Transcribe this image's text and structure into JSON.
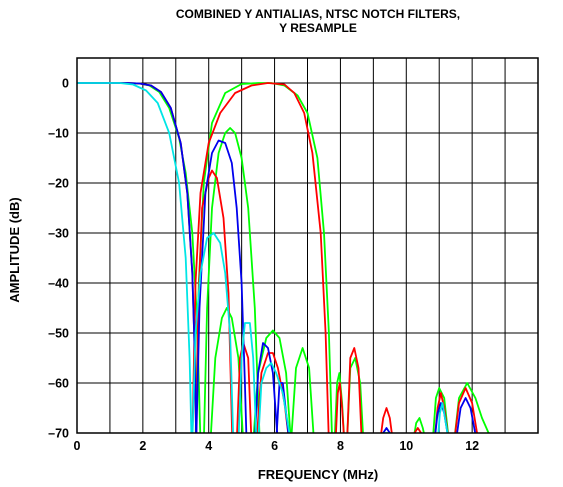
{
  "chart_data": {
    "type": "line",
    "title_lines": [
      "COMBINED Y ANTIALIAS, NTSC NOTCH FILTERS,",
      "Y RESAMPLE"
    ],
    "xlabel": "FREQUENCY (MHz)",
    "ylabel": "AMPLITUDE (dB)",
    "xlim": [
      0,
      14
    ],
    "ylim": [
      -70,
      5
    ],
    "x_ticks": [
      0,
      2,
      4,
      6,
      8,
      10,
      12
    ],
    "y_ticks": [
      0,
      -10,
      -20,
      -30,
      -40,
      -50,
      -60,
      -70
    ],
    "x_grid": [
      0,
      1,
      2,
      3,
      4,
      5,
      6,
      7,
      8,
      9,
      10,
      11,
      12,
      13,
      14
    ],
    "y_grid": [
      0,
      -10,
      -20,
      -30,
      -40,
      -50,
      -60,
      -70
    ],
    "grid": true,
    "series": [
      {
        "color": "#00ff00",
        "segments": [
          [
            [
              0,
              0
            ],
            [
              1.5,
              0
            ],
            [
              1.9,
              -0.1
            ],
            [
              2.2,
              -0.5
            ],
            [
              2.5,
              -1.8
            ],
            [
              2.8,
              -5
            ],
            [
              3.1,
              -11
            ],
            [
              3.3,
              -18
            ],
            [
              3.5,
              -30
            ],
            [
              3.65,
              -48
            ],
            [
              3.75,
              -72
            ]
          ],
          [
            [
              3.85,
              -72
            ],
            [
              3.95,
              -45
            ],
            [
              4.1,
              -25
            ],
            [
              4.3,
              -14
            ],
            [
              4.5,
              -10
            ],
            [
              4.65,
              -9
            ],
            [
              4.8,
              -10
            ],
            [
              5.0,
              -15
            ],
            [
              5.2,
              -25
            ],
            [
              5.4,
              -45
            ],
            [
              5.55,
              -72
            ]
          ],
          [
            [
              3.6,
              -72
            ],
            [
              3.7,
              -40
            ],
            [
              3.85,
              -20
            ],
            [
              4.1,
              -8
            ],
            [
              4.5,
              -2
            ],
            [
              5.0,
              -0.2
            ],
            [
              5.5,
              0
            ],
            [
              5.9,
              0
            ],
            [
              6.3,
              -0.5
            ],
            [
              6.7,
              -2.5
            ],
            [
              7.0,
              -6
            ],
            [
              7.3,
              -15
            ],
            [
              7.5,
              -30
            ],
            [
              7.65,
              -50
            ],
            [
              7.75,
              -72
            ]
          ],
          [
            [
              4.05,
              -72
            ],
            [
              4.2,
              -55
            ],
            [
              4.4,
              -47
            ],
            [
              4.55,
              -45
            ],
            [
              4.7,
              -47
            ],
            [
              4.9,
              -55
            ],
            [
              5.05,
              -72
            ]
          ],
          [
            [
              5.35,
              -72
            ],
            [
              5.5,
              -58
            ],
            [
              5.75,
              -51
            ],
            [
              5.95,
              -49.5
            ],
            [
              6.15,
              -51
            ],
            [
              6.35,
              -58
            ],
            [
              6.5,
              -72
            ]
          ],
          [
            [
              6.5,
              -72
            ],
            [
              6.65,
              -57
            ],
            [
              6.85,
              -53
            ],
            [
              7.05,
              -57
            ],
            [
              7.2,
              -72
            ]
          ],
          [
            [
              7.82,
              -72
            ],
            [
              7.9,
              -60
            ],
            [
              7.97,
              -58
            ],
            [
              8.05,
              -64
            ],
            [
              8.12,
              -72
            ]
          ],
          [
            [
              8.2,
              -72
            ],
            [
              8.3,
              -57
            ],
            [
              8.45,
              -55
            ],
            [
              8.6,
              -60
            ],
            [
              8.7,
              -72
            ]
          ],
          [
            [
              10.2,
              -72
            ],
            [
              10.3,
              -68
            ],
            [
              10.4,
              -67
            ],
            [
              10.5,
              -69
            ],
            [
              10.6,
              -72
            ]
          ],
          [
            [
              10.8,
              -72
            ],
            [
              10.9,
              -63
            ],
            [
              11.0,
              -61
            ],
            [
              11.15,
              -63
            ],
            [
              11.3,
              -72
            ]
          ],
          [
            [
              11.45,
              -72
            ],
            [
              11.6,
              -63
            ],
            [
              11.85,
              -60
            ],
            [
              12.1,
              -63
            ],
            [
              12.3,
              -67
            ],
            [
              12.5,
              -70
            ],
            [
              12.65,
              -72
            ]
          ]
        ]
      },
      {
        "color": "#ff0000",
        "segments": [
          [
            [
              0,
              0
            ],
            [
              1.5,
              0
            ],
            [
              1.9,
              -0.1
            ],
            [
              2.25,
              -0.5
            ],
            [
              2.55,
              -1.8
            ],
            [
              2.85,
              -5
            ],
            [
              3.15,
              -12
            ],
            [
              3.35,
              -22
            ],
            [
              3.5,
              -38
            ],
            [
              3.58,
              -55
            ],
            [
              3.62,
              -72
            ]
          ],
          [
            [
              3.62,
              -72
            ],
            [
              3.68,
              -45
            ],
            [
              3.8,
              -25
            ],
            [
              4.0,
              -19
            ],
            [
              4.1,
              -17.5
            ],
            [
              4.25,
              -19
            ],
            [
              4.45,
              -27
            ],
            [
              4.6,
              -42
            ],
            [
              4.72,
              -72
            ]
          ],
          [
            [
              3.5,
              -72
            ],
            [
              3.6,
              -40
            ],
            [
              3.75,
              -22
            ],
            [
              4.0,
              -12
            ],
            [
              4.35,
              -6
            ],
            [
              4.8,
              -2
            ],
            [
              5.3,
              -0.5
            ],
            [
              5.8,
              0
            ],
            [
              6.3,
              -0.3
            ],
            [
              6.6,
              -2
            ],
            [
              6.9,
              -6
            ],
            [
              7.15,
              -14
            ],
            [
              7.4,
              -30
            ],
            [
              7.55,
              -50
            ],
            [
              7.65,
              -72
            ]
          ],
          [
            [
              4.85,
              -72
            ],
            [
              4.95,
              -55
            ],
            [
              5.05,
              -52
            ],
            [
              5.2,
              -55
            ],
            [
              5.3,
              -72
            ]
          ],
          [
            [
              5.45,
              -72
            ],
            [
              5.6,
              -58
            ],
            [
              5.8,
              -54
            ],
            [
              5.95,
              -54
            ],
            [
              6.1,
              -57
            ],
            [
              6.3,
              -64
            ],
            [
              6.45,
              -72
            ]
          ],
          [
            [
              7.85,
              -72
            ],
            [
              7.92,
              -62
            ],
            [
              7.98,
              -60
            ],
            [
              8.05,
              -65
            ],
            [
              8.12,
              -72
            ]
          ],
          [
            [
              8.2,
              -72
            ],
            [
              8.3,
              -55
            ],
            [
              8.42,
              -53
            ],
            [
              8.55,
              -57
            ],
            [
              8.65,
              -72
            ]
          ],
          [
            [
              9.2,
              -72
            ],
            [
              9.3,
              -67
            ],
            [
              9.4,
              -65
            ],
            [
              9.5,
              -67
            ],
            [
              9.6,
              -72
            ]
          ],
          [
            [
              10.15,
              -72
            ],
            [
              10.25,
              -70
            ],
            [
              10.35,
              -69
            ],
            [
              10.45,
              -70
            ],
            [
              10.55,
              -72
            ]
          ],
          [
            [
              10.85,
              -72
            ],
            [
              10.95,
              -65
            ],
            [
              11.05,
              -62
            ],
            [
              11.15,
              -65
            ],
            [
              11.3,
              -72
            ]
          ],
          [
            [
              11.45,
              -72
            ],
            [
              11.6,
              -64
            ],
            [
              11.8,
              -61
            ],
            [
              12.0,
              -64
            ],
            [
              12.2,
              -72
            ]
          ]
        ]
      },
      {
        "color": "#0000ee",
        "segments": [
          [
            [
              0,
              0
            ],
            [
              1.5,
              0
            ],
            [
              1.9,
              -0.1
            ],
            [
              2.25,
              -0.5
            ],
            [
              2.55,
              -1.8
            ],
            [
              2.85,
              -5
            ],
            [
              3.15,
              -12
            ],
            [
              3.35,
              -22
            ],
            [
              3.5,
              -38
            ],
            [
              3.58,
              -55
            ],
            [
              3.62,
              -72
            ]
          ],
          [
            [
              3.62,
              -72
            ],
            [
              3.72,
              -45
            ],
            [
              3.9,
              -22
            ],
            [
              4.1,
              -14
            ],
            [
              4.3,
              -11.5
            ],
            [
              4.5,
              -12
            ],
            [
              4.7,
              -16
            ],
            [
              4.85,
              -25
            ],
            [
              5.0,
              -40
            ],
            [
              5.1,
              -60
            ],
            [
              5.15,
              -72
            ]
          ],
          [
            [
              5.4,
              -72
            ],
            [
              5.5,
              -58
            ],
            [
              5.65,
              -52
            ],
            [
              5.8,
              -53
            ],
            [
              5.95,
              -58
            ],
            [
              6.1,
              -72
            ]
          ],
          [
            [
              6.05,
              -72
            ],
            [
              6.15,
              -60
            ],
            [
              6.25,
              -60
            ],
            [
              6.35,
              -66
            ],
            [
              6.45,
              -72
            ]
          ],
          [
            [
              9.2,
              -72
            ],
            [
              9.3,
              -70
            ],
            [
              9.4,
              -69
            ],
            [
              9.5,
              -70
            ],
            [
              9.6,
              -72
            ]
          ],
          [
            [
              10.85,
              -72
            ],
            [
              10.95,
              -66
            ],
            [
              11.05,
              -64
            ],
            [
              11.15,
              -66
            ],
            [
              11.3,
              -72
            ]
          ],
          [
            [
              11.5,
              -72
            ],
            [
              11.65,
              -65
            ],
            [
              11.8,
              -63
            ],
            [
              11.95,
              -65
            ],
            [
              12.15,
              -72
            ]
          ]
        ]
      },
      {
        "color": "#00e5e5",
        "segments": [
          [
            [
              0,
              0
            ],
            [
              1.3,
              0
            ],
            [
              1.7,
              -0.3
            ],
            [
              2.1,
              -1.5
            ],
            [
              2.45,
              -4
            ],
            [
              2.8,
              -10
            ],
            [
              3.1,
              -20
            ],
            [
              3.3,
              -35
            ],
            [
              3.42,
              -55
            ],
            [
              3.48,
              -72
            ]
          ],
          [
            [
              3.5,
              -72
            ],
            [
              3.6,
              -50
            ],
            [
              3.75,
              -38
            ],
            [
              3.95,
              -31
            ],
            [
              4.15,
              -30
            ],
            [
              4.35,
              -32
            ],
            [
              4.5,
              -38
            ],
            [
              4.65,
              -50
            ],
            [
              4.75,
              -72
            ]
          ],
          [
            [
              4.9,
              -72
            ],
            [
              5.0,
              -55
            ],
            [
              5.1,
              -48
            ],
            [
              5.25,
              -48
            ],
            [
              5.35,
              -55
            ],
            [
              5.45,
              -72
            ]
          ],
          [
            [
              5.5,
              -72
            ],
            [
              5.6,
              -60
            ],
            [
              5.75,
              -57
            ],
            [
              5.9,
              -56
            ],
            [
              6.05,
              -58
            ],
            [
              6.25,
              -62
            ],
            [
              6.4,
              -68
            ],
            [
              6.5,
              -72
            ]
          ],
          [
            [
              9.25,
              -72
            ],
            [
              9.35,
              -70
            ],
            [
              9.45,
              -70
            ],
            [
              9.55,
              -72
            ]
          ],
          [
            [
              10.95,
              -72
            ],
            [
              11.02,
              -66
            ],
            [
              11.1,
              -64
            ],
            [
              11.2,
              -68
            ],
            [
              11.3,
              -72
            ]
          ]
        ]
      }
    ]
  }
}
